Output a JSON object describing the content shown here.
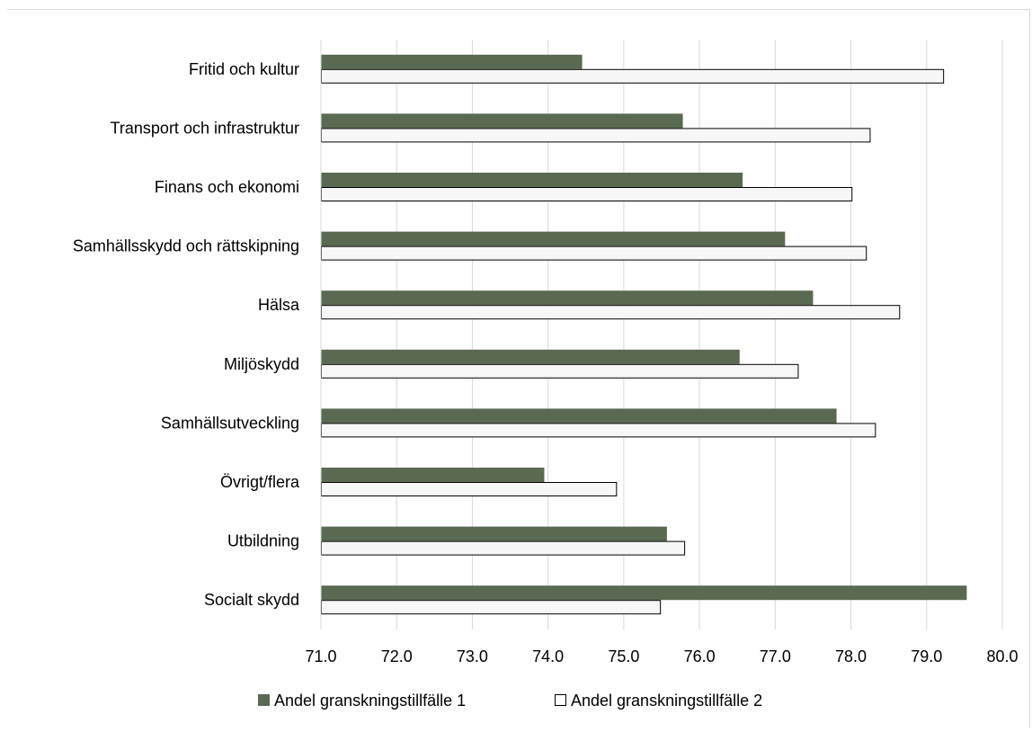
{
  "chart_data": {
    "type": "bar",
    "orientation": "horizontal",
    "categories": [
      "Fritid och kultur",
      "Transport och infrastruktur",
      "Finans och ekonomi",
      "Samhällsskydd och rättskipning",
      "Hälsa",
      "Miljöskydd",
      "Samhällsutveckling",
      "Övrigt/flera",
      "Utbildning",
      "Socialt skydd"
    ],
    "series": [
      {
        "name": "Andel granskningstillfälle 1",
        "color": "#5a6a52",
        "values": [
          74.45,
          75.78,
          76.57,
          77.13,
          77.5,
          76.53,
          77.81,
          73.95,
          75.57,
          79.53
        ]
      },
      {
        "name": "Andel granskningstillfälle 2",
        "color": "#ffffff",
        "values": [
          79.23,
          78.26,
          78.02,
          78.21,
          78.65,
          77.31,
          78.33,
          74.91,
          75.81,
          75.49
        ]
      }
    ],
    "xlim": [
      71.0,
      80.0
    ],
    "xticks": [
      "71.0",
      "72.0",
      "73.0",
      "74.0",
      "75.0",
      "76.0",
      "77.0",
      "78.0",
      "79.0",
      "80.0"
    ],
    "grid": true,
    "legend_position": "bottom",
    "title": "",
    "xlabel": "",
    "ylabel": ""
  }
}
